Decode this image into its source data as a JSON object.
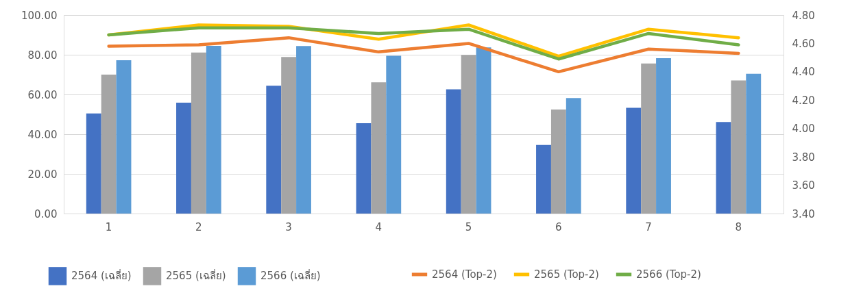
{
  "chart_data": {
    "type": "bar",
    "categories": [
      "1",
      "2",
      "3",
      "4",
      "5",
      "6",
      "7",
      "8"
    ],
    "series": [
      {
        "name": "2564 (เฉลี่ย)",
        "color": "#4472c4",
        "values": [
          50.4,
          55.9,
          64.4,
          45.5,
          62.6,
          34.6,
          53.3,
          46.1
        ]
      },
      {
        "name": "2565 (เฉลี่ย)",
        "color": "#a5a5a5",
        "values": [
          70.0,
          81.1,
          78.9,
          66.1,
          79.9,
          52.4,
          75.6,
          67.1
        ]
      },
      {
        "name": "2566 (เฉลี่ย)",
        "color": "#5b9bd5",
        "values": [
          77.2,
          84.5,
          84.4,
          79.5,
          83.7,
          58.2,
          78.3,
          70.4
        ]
      },
      {
        "name": "2564 (Top-2)",
        "type": "line",
        "axis": "y2",
        "color": "#ed7d31",
        "values": [
          4.58,
          4.59,
          4.64,
          4.54,
          4.6,
          4.4,
          4.56,
          4.53
        ]
      },
      {
        "name": "2565 (Top-2)",
        "type": "line",
        "axis": "y2",
        "color": "#ffc000",
        "values": [
          4.66,
          4.73,
          4.72,
          4.63,
          4.73,
          4.51,
          4.7,
          4.64
        ]
      },
      {
        "name": "2566 (Top-2)",
        "type": "line",
        "axis": "y2",
        "color": "#70ad47",
        "values": [
          4.66,
          4.71,
          4.71,
          4.67,
          4.7,
          4.49,
          4.67,
          4.59
        ]
      }
    ],
    "ylim": [
      0,
      100
    ],
    "yticks": [
      {
        "value": 0,
        "label": "0.00"
      },
      {
        "value": 20,
        "label": "20.00"
      },
      {
        "value": 40,
        "label": "40.00"
      },
      {
        "value": 60,
        "label": "60.00"
      },
      {
        "value": 80,
        "label": "80.00"
      },
      {
        "value": 100,
        "label": "100.00"
      }
    ],
    "y2lim": [
      3.4,
      4.8
    ],
    "y2ticks": [
      {
        "value": 3.4,
        "label": "3.40"
      },
      {
        "value": 3.6,
        "label": "3.60"
      },
      {
        "value": 3.8,
        "label": "3.80"
      },
      {
        "value": 4.0,
        "label": "4.00"
      },
      {
        "value": 4.2,
        "label": "4.20"
      },
      {
        "value": 4.4,
        "label": "4.40"
      },
      {
        "value": 4.6,
        "label": "4.60"
      },
      {
        "value": 4.8,
        "label": "4.80"
      }
    ],
    "grid": "y",
    "legend": "bottom"
  }
}
